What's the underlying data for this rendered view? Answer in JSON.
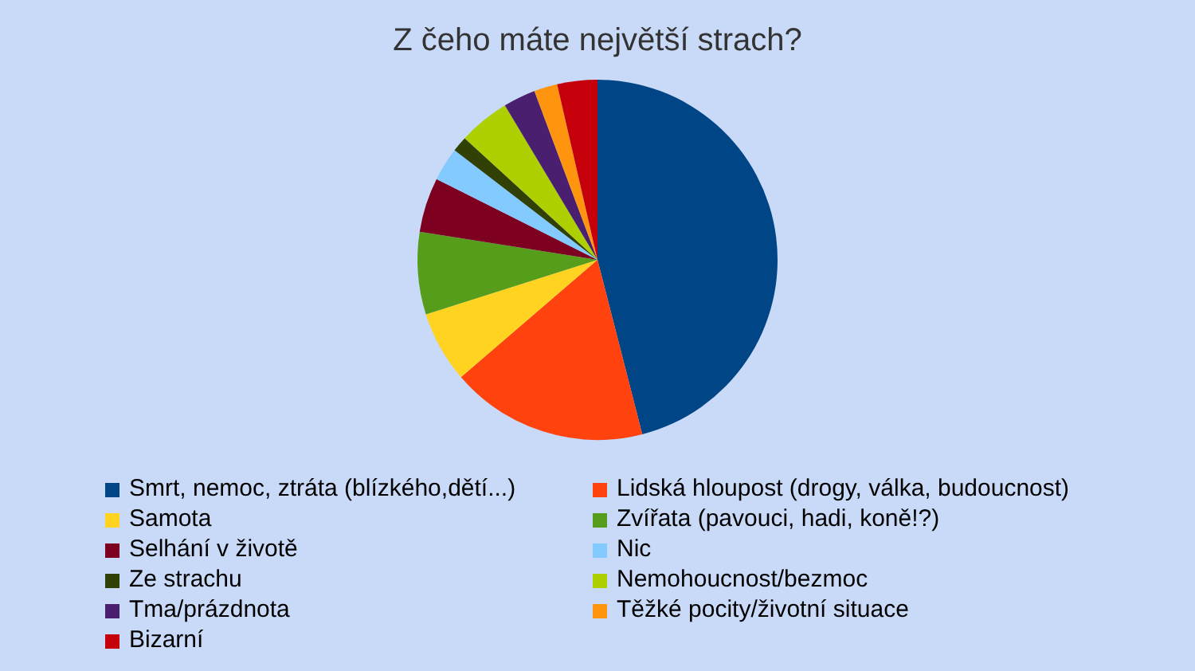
{
  "chart_data": {
    "type": "pie",
    "title": "Z čeho máte největší strach?",
    "categories": [
      "Smrt, nemoc, ztráta (blízkého,dětí...)",
      "Lidská hloupost (drogy, válka, budoucnost)",
      "Samota",
      "Zvířata (pavouci, hadi, koně!?)",
      "Selhání v životě",
      "Nic",
      "Ze strachu",
      "Nemohoucnost/bezmoc",
      "Tma/prázdnota",
      "Těžké pocity/životní situace",
      "Bizarní"
    ],
    "values": [
      46,
      17.7,
      6.4,
      7.4,
      4.9,
      3.0,
      1.4,
      4.6,
      2.9,
      2.1,
      3.6
    ],
    "colors": [
      "#004586",
      "#ff420e",
      "#ffd320",
      "#579d1c",
      "#7e0021",
      "#83caff",
      "#314004",
      "#aecf00",
      "#4b1f6f",
      "#ff950e",
      "#c5000b"
    ],
    "legend": "bottom"
  }
}
